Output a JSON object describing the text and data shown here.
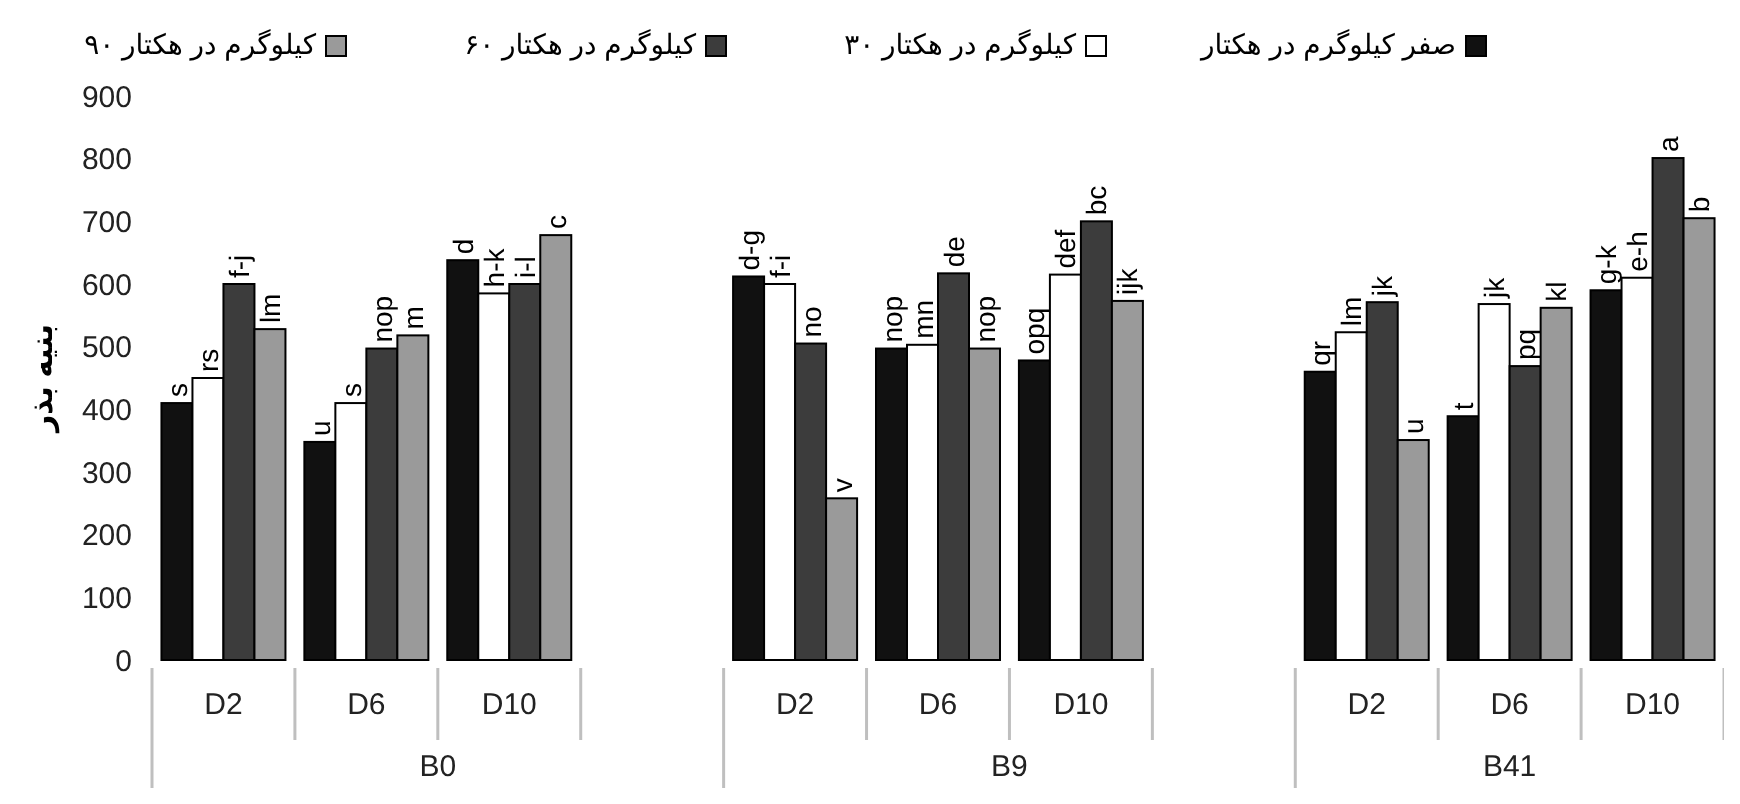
{
  "chart_data": {
    "type": "bar",
    "ylabel": "بنیه بذر",
    "categories": [
      "D2",
      "D6",
      "D10",
      null,
      "D2",
      "D6",
      "D10",
      null,
      "D2",
      "D6",
      "D10"
    ],
    "series": [
      {
        "name": "صفر کیلوگرم در هکتار",
        "color": "#111111",
        "values": [
          410,
          348,
          638,
          null,
          612,
          497,
          478,
          null,
          460,
          389,
          590
        ],
        "value_labels": [
          "s",
          "u",
          "d",
          null,
          "d-g",
          "nop",
          "opq",
          null,
          "qr",
          "t",
          "g-k"
        ]
      },
      {
        "name": "۳۰ کیلوگرم در هکتار",
        "color": "#ffffff",
        "values": [
          450,
          410,
          585,
          null,
          600,
          503,
          615,
          null,
          523,
          568,
          610
        ],
        "value_labels": [
          "rs",
          "s",
          "h-k",
          null,
          "f-i",
          "mn",
          "def",
          null,
          "lm",
          "jk",
          "e-h"
        ]
      },
      {
        "name": "۶۰ کیلوگرم در هکتار",
        "color": "#3c3c3c",
        "values": [
          600,
          497,
          600,
          null,
          505,
          617,
          700,
          null,
          571,
          469,
          801
        ],
        "value_labels": [
          "f-j",
          "nop",
          "i-l",
          null,
          "no",
          "de",
          "bc",
          null,
          "jk",
          "pq",
          "a"
        ]
      },
      {
        "name": "۹۰ کیلوگرم در هکتار",
        "color": "#9a9a9a",
        "values": [
          528,
          518,
          678,
          null,
          258,
          497,
          573,
          null,
          351,
          562,
          705
        ],
        "value_labels": [
          "lm",
          "m",
          "c",
          null,
          "v",
          "nop",
          "ijk",
          null,
          "u",
          "kl",
          "b"
        ]
      }
    ],
    "annotations": [
      "B0",
      "B9",
      "B41"
    ],
    "ylim": [
      0,
      900
    ],
    "yticks": [
      0,
      100,
      200,
      300,
      400,
      500,
      600,
      700,
      800,
      900
    ],
    "grid": false,
    "legend": "top"
  }
}
